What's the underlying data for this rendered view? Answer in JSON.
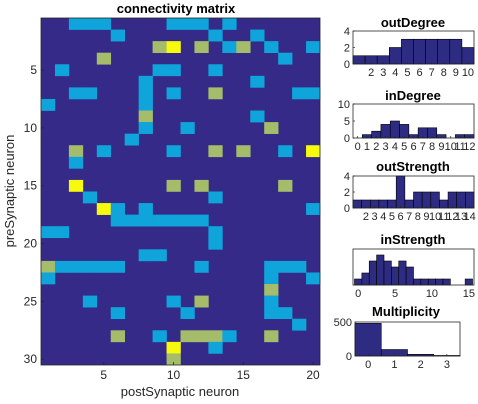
{
  "colors": {
    "zero": "#352a87",
    "one": "#0fa5db",
    "two": "#a5bd6a",
    "three": "#f8fa0d",
    "bar": "#2e2b82",
    "axis": "#262626"
  },
  "chart_data": [
    {
      "type": "heatmap",
      "title": "connectivity matrix",
      "xlabel": "postSynaptic neuron",
      "ylabel": "preSynaptic neuron",
      "x_ticks": [
        5,
        10,
        15,
        20
      ],
      "y_ticks": [
        5,
        10,
        15,
        20,
        25,
        30
      ],
      "n_cols": 20,
      "n_rows": 30,
      "colorscale": {
        "0": "#352a87",
        "1": "#0fa5db",
        "2": "#a5bd6a",
        "3": "#f8fa0d"
      },
      "cells": [
        [
          1,
          3,
          1
        ],
        [
          1,
          4,
          1
        ],
        [
          1,
          5,
          1
        ],
        [
          1,
          10,
          1
        ],
        [
          1,
          11,
          1
        ],
        [
          1,
          12,
          1
        ],
        [
          1,
          14,
          1
        ],
        [
          2,
          6,
          1
        ],
        [
          2,
          13,
          1
        ],
        [
          2,
          16,
          1
        ],
        [
          3,
          9,
          2
        ],
        [
          3,
          10,
          3
        ],
        [
          3,
          12,
          2
        ],
        [
          3,
          14,
          1
        ],
        [
          3,
          15,
          2
        ],
        [
          3,
          17,
          1
        ],
        [
          3,
          20,
          1
        ],
        [
          4,
          5,
          2
        ],
        [
          4,
          18,
          1
        ],
        [
          5,
          2,
          1
        ],
        [
          5,
          9,
          1
        ],
        [
          5,
          10,
          1
        ],
        [
          5,
          13,
          1
        ],
        [
          6,
          8,
          1
        ],
        [
          6,
          16,
          1
        ],
        [
          7,
          3,
          1
        ],
        [
          7,
          4,
          1
        ],
        [
          7,
          8,
          1
        ],
        [
          7,
          10,
          1
        ],
        [
          7,
          13,
          2
        ],
        [
          7,
          19,
          1
        ],
        [
          7,
          20,
          1
        ],
        [
          8,
          1,
          1
        ],
        [
          8,
          8,
          1
        ],
        [
          9,
          8,
          2
        ],
        [
          9,
          16,
          1
        ],
        [
          10,
          8,
          1
        ],
        [
          10,
          11,
          1
        ],
        [
          10,
          17,
          2
        ],
        [
          11,
          7,
          1
        ],
        [
          12,
          3,
          2
        ],
        [
          12,
          5,
          1
        ],
        [
          12,
          10,
          1
        ],
        [
          12,
          13,
          2
        ],
        [
          12,
          15,
          2
        ],
        [
          12,
          18,
          1
        ],
        [
          12,
          20,
          3
        ],
        [
          13,
          3,
          1
        ],
        [
          15,
          3,
          3
        ],
        [
          15,
          10,
          2
        ],
        [
          15,
          12,
          2
        ],
        [
          15,
          18,
          2
        ],
        [
          16,
          4,
          1
        ],
        [
          16,
          13,
          1
        ],
        [
          17,
          5,
          3
        ],
        [
          17,
          6,
          1
        ],
        [
          17,
          8,
          1
        ],
        [
          17,
          20,
          1
        ],
        [
          18,
          6,
          1
        ],
        [
          18,
          7,
          1
        ],
        [
          18,
          8,
          1
        ],
        [
          18,
          9,
          1
        ],
        [
          18,
          10,
          1
        ],
        [
          18,
          11,
          1
        ],
        [
          18,
          12,
          1
        ],
        [
          19,
          1,
          1
        ],
        [
          19,
          2,
          1
        ],
        [
          19,
          13,
          1
        ],
        [
          20,
          13,
          1
        ],
        [
          21,
          8,
          1
        ],
        [
          21,
          9,
          1
        ],
        [
          22,
          1,
          2
        ],
        [
          22,
          2,
          1
        ],
        [
          22,
          3,
          1
        ],
        [
          22,
          4,
          1
        ],
        [
          22,
          5,
          1
        ],
        [
          22,
          6,
          1
        ],
        [
          22,
          12,
          1
        ],
        [
          22,
          17,
          1
        ],
        [
          22,
          18,
          1
        ],
        [
          22,
          19,
          1
        ],
        [
          23,
          1,
          1
        ],
        [
          23,
          17,
          1
        ],
        [
          23,
          20,
          1
        ],
        [
          24,
          17,
          2
        ],
        [
          25,
          4,
          1
        ],
        [
          25,
          10,
          1
        ],
        [
          25,
          12,
          2
        ],
        [
          25,
          17,
          1
        ],
        [
          26,
          6,
          1
        ],
        [
          26,
          11,
          1
        ],
        [
          26,
          17,
          1
        ],
        [
          26,
          18,
          1
        ],
        [
          27,
          19,
          1
        ],
        [
          28,
          6,
          2
        ],
        [
          28,
          9,
          1
        ],
        [
          28,
          11,
          2
        ],
        [
          28,
          12,
          2
        ],
        [
          28,
          13,
          2
        ],
        [
          28,
          14,
          1
        ],
        [
          28,
          17,
          2
        ],
        [
          29,
          10,
          3
        ],
        [
          29,
          13,
          1
        ],
        [
          30,
          10,
          2
        ]
      ]
    },
    {
      "type": "bar",
      "title": "outDegree",
      "categories": [
        1,
        2,
        3,
        4,
        5,
        6,
        7,
        8,
        9,
        10
      ],
      "tick_labels": [
        "2",
        "3",
        "4",
        "5",
        "6",
        "7",
        "8",
        "9",
        "10"
      ],
      "tick_positions": [
        2,
        3,
        4,
        5,
        6,
        7,
        8,
        9,
        10
      ],
      "values": [
        1,
        1,
        1,
        2,
        3,
        3,
        3,
        3,
        3,
        2
      ],
      "xlim": [
        0.5,
        10.5
      ],
      "ylim": [
        0,
        4
      ],
      "yticks": [
        0,
        2,
        4
      ]
    },
    {
      "type": "bar",
      "title": "inDegree",
      "categories": [
        0,
        1,
        2,
        3,
        4,
        5,
        6,
        7,
        8,
        9,
        10,
        11,
        12
      ],
      "tick_labels": [
        "0",
        "1",
        "2",
        "3",
        "4",
        "5",
        "6",
        "7",
        "8",
        "9",
        "10",
        "11",
        "12"
      ],
      "tick_positions": [
        0,
        1,
        2,
        3,
        4,
        5,
        6,
        7,
        8,
        9,
        10,
        11,
        12
      ],
      "values": [
        0,
        1,
        2,
        4,
        5,
        4,
        1,
        3,
        3,
        1,
        0,
        1,
        1
      ],
      "xlim": [
        -0.5,
        12.5
      ],
      "ylim": [
        0,
        10
      ],
      "yticks": [
        0,
        5,
        10
      ]
    },
    {
      "type": "bar",
      "title": "outStrength",
      "categories": [
        1,
        2,
        3,
        4,
        5,
        6,
        7,
        8,
        9,
        10,
        11,
        12,
        13,
        14
      ],
      "tick_labels": [
        "2",
        "3",
        "4",
        "5",
        "6",
        "7",
        "8",
        "9",
        "10",
        "11",
        "12",
        "13",
        "14"
      ],
      "tick_positions": [
        2,
        3,
        4,
        5,
        6,
        7,
        8,
        9,
        10,
        11,
        12,
        13,
        14
      ],
      "values": [
        1,
        1,
        1,
        1,
        1,
        4,
        1,
        2,
        2,
        2,
        1,
        2,
        2,
        2
      ],
      "xlim": [
        0.5,
        14.5
      ],
      "ylim": [
        0,
        4
      ],
      "yticks": [
        0,
        2,
        4
      ]
    },
    {
      "type": "bar",
      "title": "inStrength",
      "categories": [
        0,
        1,
        2,
        3,
        4,
        5,
        6,
        7,
        8,
        9,
        10,
        11,
        12,
        13,
        14,
        15
      ],
      "tick_labels": [
        "0",
        "5",
        "10",
        "15"
      ],
      "tick_positions": [
        0,
        5,
        10,
        15
      ],
      "values": [
        1,
        2,
        4,
        5,
        4,
        3,
        4,
        3,
        1,
        1,
        1,
        1,
        1,
        0,
        0,
        1
      ],
      "xlim": [
        -0.7,
        15.7
      ],
      "ylim": [
        0,
        6
      ],
      "yticks": []
    },
    {
      "type": "bar",
      "title": "Multiplicity",
      "categories": [
        0,
        1,
        2,
        3
      ],
      "tick_labels": [
        "0",
        "1",
        "2",
        "3"
      ],
      "tick_positions": [
        0,
        1,
        2,
        3
      ],
      "values": [
        480,
        95,
        25,
        8
      ],
      "xlim": [
        -0.5,
        3.5
      ],
      "ylim": [
        0,
        500
      ],
      "yticks": [
        0,
        500
      ]
    }
  ]
}
